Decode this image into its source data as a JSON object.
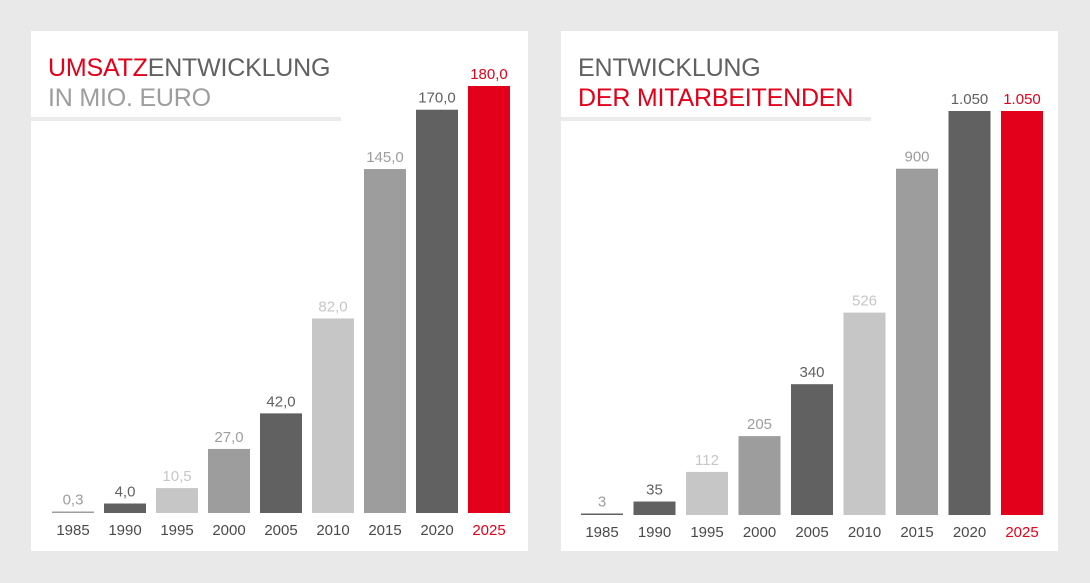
{
  "colors": {
    "dark": "#616161",
    "mid": "#9d9d9d",
    "light": "#c6c6c6",
    "red": "#e2001a"
  },
  "chart_data": [
    {
      "type": "bar",
      "title_part1": "UMSATZ",
      "title_part2": "ENTWICKLUNG",
      "subtitle": "IN MIO. EURO",
      "categories": [
        "1985",
        "1990",
        "1995",
        "2000",
        "2005",
        "2010",
        "2015",
        "2020",
        "2025"
      ],
      "values": [
        0.3,
        4.0,
        10.5,
        27.0,
        42.0,
        82.0,
        145.0,
        170.0,
        180.0
      ],
      "labels": [
        "0,3",
        "4,0",
        "10,5",
        "27,0",
        "42,0",
        "82,0",
        "145,0",
        "170,0",
        "180,0"
      ],
      "bar_colors": [
        "mid",
        "dark",
        "light",
        "mid",
        "dark",
        "light",
        "mid",
        "dark",
        "red"
      ],
      "label_colors": [
        "mid",
        "dark",
        "light",
        "mid",
        "dark",
        "light",
        "mid",
        "dark",
        "red"
      ],
      "ylim": [
        0,
        180
      ]
    },
    {
      "type": "bar",
      "title_part1": "ENTWICKLUNG",
      "title_part2": "DER MITARBEITENDEN",
      "categories": [
        "1985",
        "1990",
        "1995",
        "2000",
        "2005",
        "2010",
        "2015",
        "2020",
        "2025"
      ],
      "values": [
        3,
        35,
        112,
        205,
        340,
        526,
        900,
        1050,
        1050
      ],
      "labels": [
        "3",
        "35",
        "112",
        "205",
        "340",
        "526",
        "900",
        "1.050",
        "1.050"
      ],
      "bar_colors": [
        "dark",
        "dark",
        "light",
        "mid",
        "dark",
        "light",
        "mid",
        "dark",
        "red"
      ],
      "label_colors": [
        "mid",
        "dark",
        "light",
        "mid",
        "dark",
        "light",
        "mid",
        "dark",
        "red"
      ],
      "ylim": [
        0,
        1050
      ]
    }
  ]
}
